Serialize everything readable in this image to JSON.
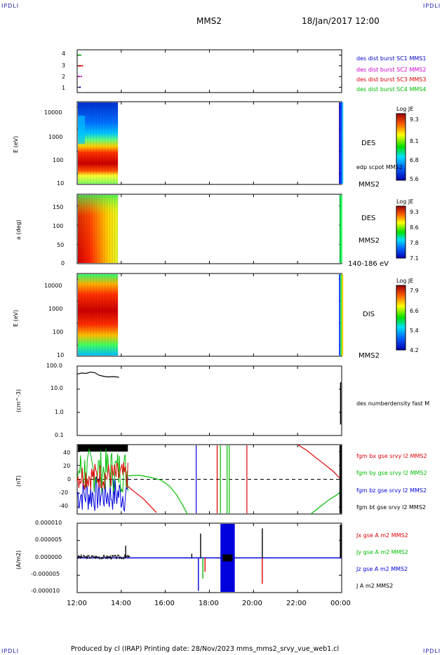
{
  "corner_label": "IPDLI",
  "header": {
    "spacecraft": "MMS2",
    "datetime": "18/Jan/2017 12:00"
  },
  "footer": {
    "text": "Produced by cl (IRAP)   Printing date: 28/Nov/2023   mms_mms2_srvy_vue_web1.cl"
  },
  "chart_data": [
    {
      "id": "burst",
      "type": "scatter",
      "yticks": [
        "4",
        "3",
        "2",
        "1"
      ],
      "ylim": [
        0.5,
        4.5
      ],
      "legend": [
        {
          "name": "des dist burst SC1 MMS1",
          "color": "#0000cc"
        },
        {
          "name": "des dist burst SC2 MMS2",
          "color": "#cc00cc"
        },
        {
          "name": "des dist burst SC3 MMS3",
          "color": "#dd0000"
        },
        {
          "name": "des dist burst SC4 MMS4",
          "color": "#00bb00"
        }
      ],
      "series": [
        {
          "name": "des dist burst SC4 MMS4",
          "y": 4,
          "x": [
            12.05,
            12.12
          ],
          "color": "#00bb00"
        },
        {
          "name": "des dist burst SC3 MMS3",
          "y": 3,
          "x": [
            12.05,
            12.12,
            12.2
          ],
          "color": "#dd0000"
        },
        {
          "name": "des dist burst SC2 MMS2",
          "y": 2,
          "x": [
            12.05,
            12.15
          ],
          "color": "#cc00cc"
        },
        {
          "name": "des dist burst SC1 MMS1",
          "y": 1,
          "x": [
            12.1
          ],
          "color": "#0000cc"
        }
      ]
    },
    {
      "id": "des_energy",
      "type": "heatmap",
      "ylabel": "E (eV)",
      "yscale": "log",
      "yticks": [
        "10000",
        "1000",
        "100",
        "10"
      ],
      "right_labels": [
        "DES",
        "edp scpot MMS2",
        "MMS2"
      ],
      "colorbar": {
        "title": "Log JE",
        "ticks": [
          "9.3",
          "8.1",
          "6.8",
          "5.6"
        ]
      }
    },
    {
      "id": "des_pitch",
      "type": "heatmap",
      "ylabel": "a (deg)",
      "yticks": [
        "150",
        "100",
        "50",
        "0"
      ],
      "ylim": [
        0,
        180
      ],
      "right_labels": [
        "DES",
        "MMS2",
        "140-186 eV"
      ],
      "colorbar": {
        "title": "Log JE",
        "ticks": [
          "9.3",
          "8.6",
          "7.8",
          "7.1"
        ]
      }
    },
    {
      "id": "dis_energy",
      "type": "heatmap",
      "ylabel": "E (eV)",
      "yscale": "log",
      "yticks": [
        "10000",
        "1000",
        "100",
        "10"
      ],
      "right_labels": [
        "DIS",
        "MMS2"
      ],
      "colorbar": {
        "title": "Log JE",
        "ticks": [
          "7.9",
          "6.6",
          "5.4",
          "4.2"
        ]
      }
    },
    {
      "id": "density",
      "type": "line",
      "ylabel": "(cm^-3)",
      "yscale": "log",
      "yticks": [
        "100.0",
        "10.0",
        "1.0",
        "0.1"
      ],
      "ylim": [
        0.1,
        100
      ],
      "legend": [
        {
          "name": "des numberdensity fast M",
          "color": "#000000"
        }
      ],
      "series": [
        {
          "name": "des numberdensity fast M",
          "color": "#000000",
          "x": [
            12.0,
            12.2,
            12.4,
            12.6,
            12.8,
            13.0,
            13.2,
            13.4,
            13.6,
            13.9
          ],
          "y": [
            45,
            50,
            48,
            55,
            52,
            40,
            36,
            34,
            35,
            33
          ]
        }
      ]
    },
    {
      "id": "fgm",
      "type": "line",
      "ylabel": "(nT)",
      "yticks": [
        "40",
        "20",
        "0",
        "-20",
        "-40"
      ],
      "ylim": [
        -50,
        50
      ],
      "legend": [
        {
          "name": "fgm bx gse srvy l2 MMS2",
          "color": "#dd0000"
        },
        {
          "name": "fgm by gse srvy l2 MMS2",
          "color": "#00bb00"
        },
        {
          "name": "fgm bz gse srvy l2 MMS2",
          "color": "#0000dd"
        },
        {
          "name": "fgm bt gse srvy l2 MMS2",
          "color": "#000000"
        }
      ],
      "series": [
        {
          "name": "fgm bx gse srvy l2 MMS2",
          "color": "#dd0000",
          "x": [
            14.3,
            14.6,
            15.0,
            15.3,
            15.6
          ],
          "y": [
            -10,
            -18,
            -28,
            -38,
            -48
          ]
        },
        {
          "name": "fgm by gse srvy l2 MMS2",
          "color": "#00bb00",
          "x": [
            14.3,
            14.8,
            15.3,
            15.8,
            16.2,
            16.5,
            16.8,
            17.0
          ],
          "y": [
            5,
            6,
            3,
            -1,
            -10,
            -22,
            -38,
            -50
          ]
        },
        {
          "name": "fgm bx gse srvy l2 MMS2",
          "color": "#dd0000",
          "x": [
            22.0,
            22.4,
            22.8,
            23.2,
            23.6,
            23.9
          ],
          "y": [
            50,
            42,
            32,
            22,
            12,
            2
          ]
        },
        {
          "name": "fgm by gse srvy l2 MMS2",
          "color": "#00bb00",
          "x": [
            22.6,
            23.0,
            23.4,
            23.8,
            24.0
          ],
          "y": [
            -50,
            -40,
            -30,
            -22,
            -16
          ]
        }
      ]
    },
    {
      "id": "current",
      "type": "line",
      "ylabel": "(A/m2)",
      "yticks": [
        "0.000010",
        "0.000005",
        "0.000000",
        "-0.000005",
        "-0.000010"
      ],
      "ylim": [
        -1e-05,
        1e-05
      ],
      "legend": [
        {
          "name": "Jx gse A m2 MMS2",
          "color": "#dd0000"
        },
        {
          "name": "Jy gse A m2 MMS2",
          "color": "#00bb00"
        },
        {
          "name": "Jz gse A m2 MMS2",
          "color": "#0000dd"
        },
        {
          "name": "J A m2 MMS2",
          "color": "#000000"
        }
      ]
    }
  ],
  "xaxis": {
    "ticks": [
      "12:00",
      "14:00",
      "16:00",
      "18:00",
      "20:00",
      "22:00",
      "00:00"
    ],
    "xlim": [
      12,
      24
    ]
  }
}
